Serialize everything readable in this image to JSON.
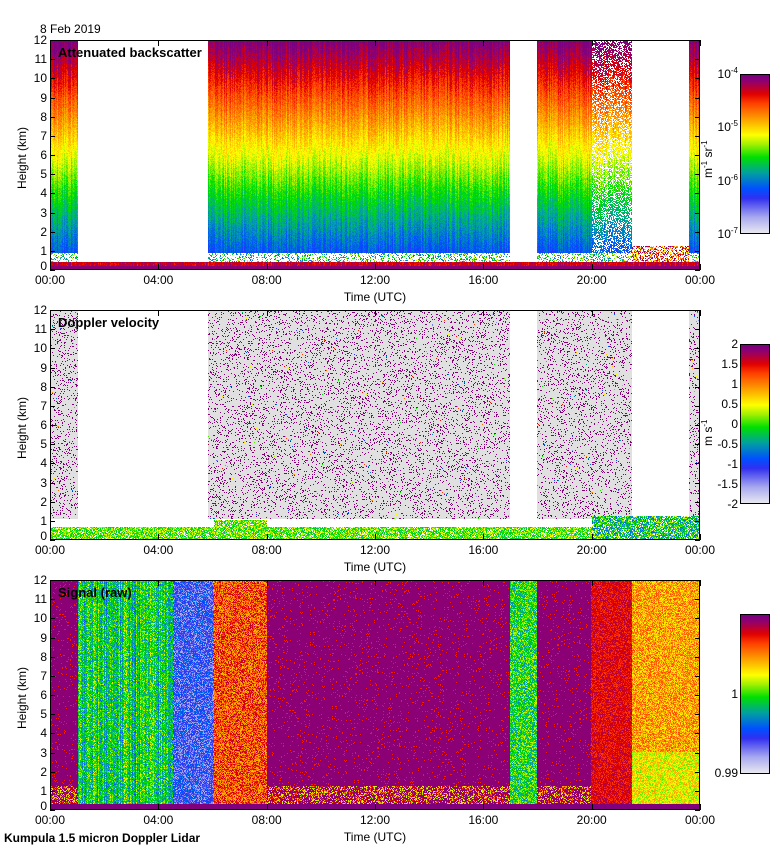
{
  "date": "8 Feb 2019",
  "footer": "Kumpula 1.5 micron Doppler Lidar",
  "axes": {
    "ylabel": "Height (km)",
    "xlabel": "Time (UTC)",
    "yticks": [
      "0",
      "1",
      "2",
      "3",
      "4",
      "5",
      "6",
      "7",
      "8",
      "9",
      "10",
      "11",
      "12"
    ],
    "xticks": [
      "00:00",
      "04:00",
      "08:00",
      "12:00",
      "16:00",
      "20:00",
      "00:00"
    ]
  },
  "chart_data": [
    {
      "type": "heatmap",
      "title": "Attenuated backscatter",
      "xlabel": "Time (UTC)",
      "ylabel": "Height (km)",
      "xlim_hours": [
        0,
        24
      ],
      "ylim_km": [
        0,
        12
      ],
      "colorbar": {
        "scale": "log",
        "range": [
          1e-07,
          0.0001
        ],
        "tick_labels": [
          "10^-4",
          "10^-5",
          "10^-6",
          "10^-7"
        ],
        "unit": "m-1 sr-1"
      },
      "gaps_hours": [
        [
          1.0,
          5.8
        ],
        [
          17.0,
          18.0
        ],
        [
          21.5,
          23.6
        ]
      ],
      "notes": "Noise-dominated column (red aloft, green/blue near 1-3 km) where data exist; boundary layer below ~0.5 km; cloud feature ~2-4 km around 06:00-07:00"
    },
    {
      "type": "heatmap",
      "title": "Doppler velocity",
      "xlabel": "Time (UTC)",
      "ylabel": "Height (km)",
      "xlim_hours": [
        0,
        24
      ],
      "ylim_km": [
        0,
        12
      ],
      "colorbar": {
        "scale": "linear",
        "range": [
          -2,
          2
        ],
        "tick_labels": [
          "2",
          "1.5",
          "1",
          "0.5",
          "0",
          "-0.5",
          "-1",
          "-1.5",
          "-2"
        ],
        "unit": "m s-1"
      },
      "gaps_hours": [
        [
          1.0,
          5.8
        ],
        [
          17.0,
          18.0
        ],
        [
          21.5,
          23.6
        ]
      ],
      "notes": "Grey noise background with scattered purple pixels aloft; green/blue boundary-layer velocities below ~1 km"
    },
    {
      "type": "heatmap",
      "title": "Signal (raw)",
      "xlabel": "Time (UTC)",
      "ylabel": "Height (km)",
      "xlim_hours": [
        0,
        24
      ],
      "ylim_km": [
        0,
        12
      ],
      "colorbar": {
        "scale": "linear",
        "range": [
          0.99,
          1.01
        ],
        "tick_labels": [
          "1",
          "0.99"
        ],
        "unit": ""
      },
      "notes": "Purple (high) background; green band 01:00-04:30, blue/grey band 04:30-06:00, red/yellow 06:00-08:00, green/blue band ~17:00-18:00, red/yellow 20:00-24:00"
    }
  ]
}
